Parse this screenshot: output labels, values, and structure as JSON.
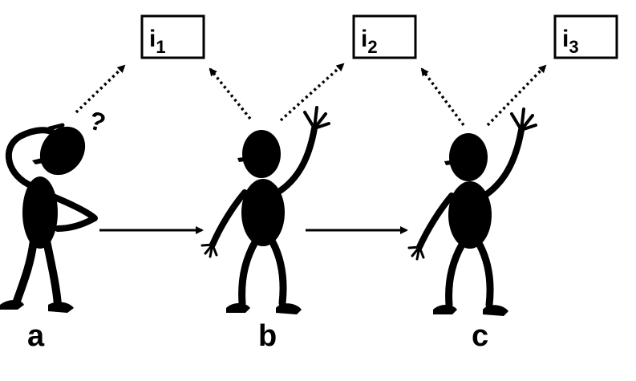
{
  "info_boxes": [
    {
      "base": "i",
      "sub": "1"
    },
    {
      "base": "i",
      "sub": "2"
    },
    {
      "base": "i",
      "sub": "3"
    }
  ],
  "people": [
    {
      "label": "a"
    },
    {
      "label": "b"
    },
    {
      "label": "c"
    }
  ],
  "thought_mark": "?",
  "colors": {
    "ink": "#000000",
    "background": "#ffffff"
  }
}
